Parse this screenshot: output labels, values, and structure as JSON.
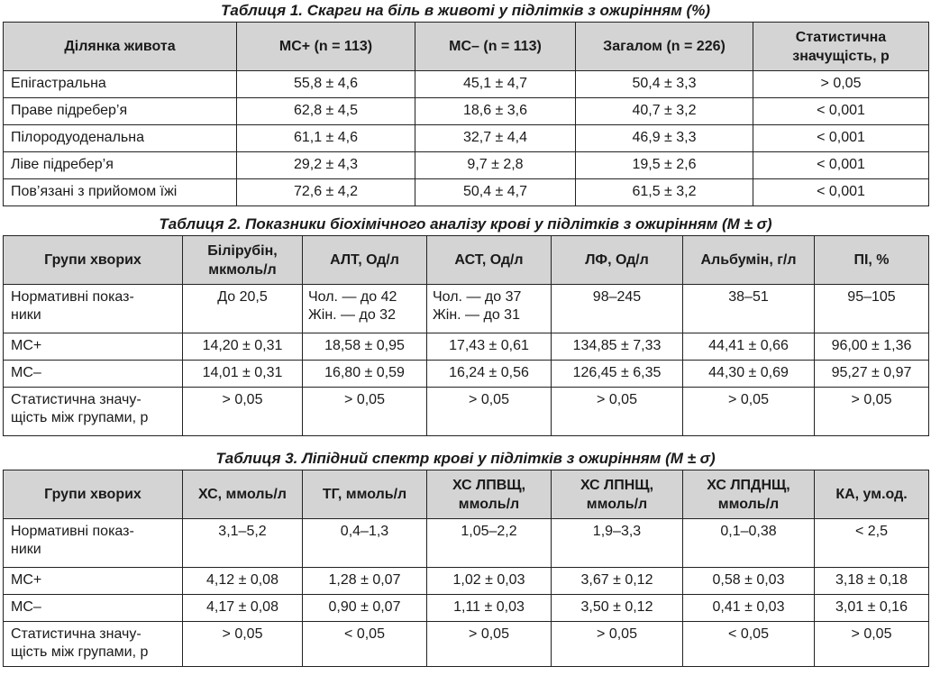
{
  "table1": {
    "caption": "Таблиця 1. Скарги на біль в животі у підлітків з ожирінням (%)",
    "headers": [
      "Ділянка живота",
      "МС+ (n = 113)",
      "МС– (n = 113)",
      "Загалом (n = 226)",
      "Статистична значущість, p"
    ],
    "header_last_lines": [
      "Статистична",
      "значущість, p"
    ],
    "rows": [
      [
        "Епігастральна",
        "55,8 ± 4,6",
        "45,1 ± 4,7",
        "50,4 ± 3,3",
        "> 0,05"
      ],
      [
        "Праве підребер’я",
        "62,8 ± 4,5",
        "18,6 ± 3,6",
        "40,7 ± 3,2",
        "< 0,001"
      ],
      [
        "Пілородуоденальна",
        "61,1 ± 4,6",
        "32,7 ± 4,4",
        "46,9 ± 3,3",
        "< 0,001"
      ],
      [
        "Ліве підребер’я",
        "29,2 ± 4,3",
        "9,7 ± 2,8",
        "19,5 ± 2,6",
        "< 0,001"
      ],
      [
        "Пов’язані з прийомом їжі",
        "72,6 ± 4,2",
        "50,4 ± 4,7",
        "61,5 ± 3,2",
        "< 0,001"
      ]
    ]
  },
  "table2": {
    "caption": "Таблиця 2. Показники біохімічного аналізу крові у підлітків з ожирінням (М ± σ)",
    "headers": [
      [
        "Групи хворих"
      ],
      [
        "Білірубін,",
        "мкмоль/л"
      ],
      [
        "АЛТ, Од/л"
      ],
      [
        "АСТ, Од/л"
      ],
      [
        "ЛФ, Од/л"
      ],
      [
        "Альбумін, г/л"
      ],
      [
        "ПІ, %"
      ]
    ],
    "rows": [
      [
        [
          "Нормативні показ-",
          "ники"
        ],
        [
          "До 20,5"
        ],
        [
          "Чол. — до 42",
          "Жін. — до 32"
        ],
        [
          "Чол. — до 37",
          "Жін. — до 31"
        ],
        [
          "98–245"
        ],
        [
          "38–51"
        ],
        [
          "95–105"
        ]
      ],
      [
        [
          "МС+"
        ],
        [
          "14,20 ± 0,31"
        ],
        [
          "18,58 ± 0,95"
        ],
        [
          "17,43 ± 0,61"
        ],
        [
          "134,85 ± 7,33"
        ],
        [
          "44,41 ± 0,66"
        ],
        [
          "96,00 ± 1,36"
        ]
      ],
      [
        [
          "МС–"
        ],
        [
          "14,01 ± 0,31"
        ],
        [
          "16,80 ± 0,59"
        ],
        [
          "16,24 ± 0,56"
        ],
        [
          "126,45 ± 6,35"
        ],
        [
          "44,30 ± 0,69"
        ],
        [
          "95,27 ± 0,97"
        ]
      ],
      [
        [
          "Статистична значу-",
          "щість між групами, p"
        ],
        [
          "> 0,05"
        ],
        [
          "> 0,05"
        ],
        [
          "> 0,05"
        ],
        [
          "> 0,05"
        ],
        [
          "> 0,05"
        ],
        [
          "> 0,05"
        ]
      ]
    ]
  },
  "table3": {
    "caption": "Таблиця 3. Ліпідний спектр крові у підлітків з ожирінням (М ± σ)",
    "headers": [
      [
        "Групи хворих"
      ],
      [
        "ХС, ммоль/л"
      ],
      [
        "ТГ, ммоль/л"
      ],
      [
        "ХС ЛПВЩ,",
        "ммоль/л"
      ],
      [
        "ХС ЛПНЩ,",
        "ммоль/л"
      ],
      [
        "ХС ЛПДНЩ,",
        "ммоль/л"
      ],
      [
        "КА, ум.од."
      ]
    ],
    "rows": [
      [
        [
          "Нормативні показ-",
          "ники"
        ],
        [
          "3,1–5,2"
        ],
        [
          "0,4–1,3"
        ],
        [
          "1,05–2,2"
        ],
        [
          "1,9–3,3"
        ],
        [
          "0,1–0,38"
        ],
        [
          "< 2,5"
        ]
      ],
      [
        [
          "МС+"
        ],
        [
          "4,12 ± 0,08"
        ],
        [
          "1,28 ± 0,07"
        ],
        [
          "1,02 ± 0,03"
        ],
        [
          "3,67 ± 0,12"
        ],
        [
          "0,58 ± 0,03"
        ],
        [
          "3,18 ± 0,18"
        ]
      ],
      [
        [
          "МС–"
        ],
        [
          "4,17 ± 0,08"
        ],
        [
          "0,90 ± 0,07"
        ],
        [
          "1,11 ± 0,03"
        ],
        [
          "3,50 ± 0,12"
        ],
        [
          "0,41 ± 0,03"
        ],
        [
          "3,01 ± 0,16"
        ]
      ],
      [
        [
          "Статистична значу-",
          "щість між групами, p"
        ],
        [
          "> 0,05"
        ],
        [
          "< 0,05"
        ],
        [
          "> 0,05"
        ],
        [
          "> 0,05"
        ],
        [
          "< 0,05"
        ],
        [
          "> 0,05"
        ]
      ]
    ]
  }
}
